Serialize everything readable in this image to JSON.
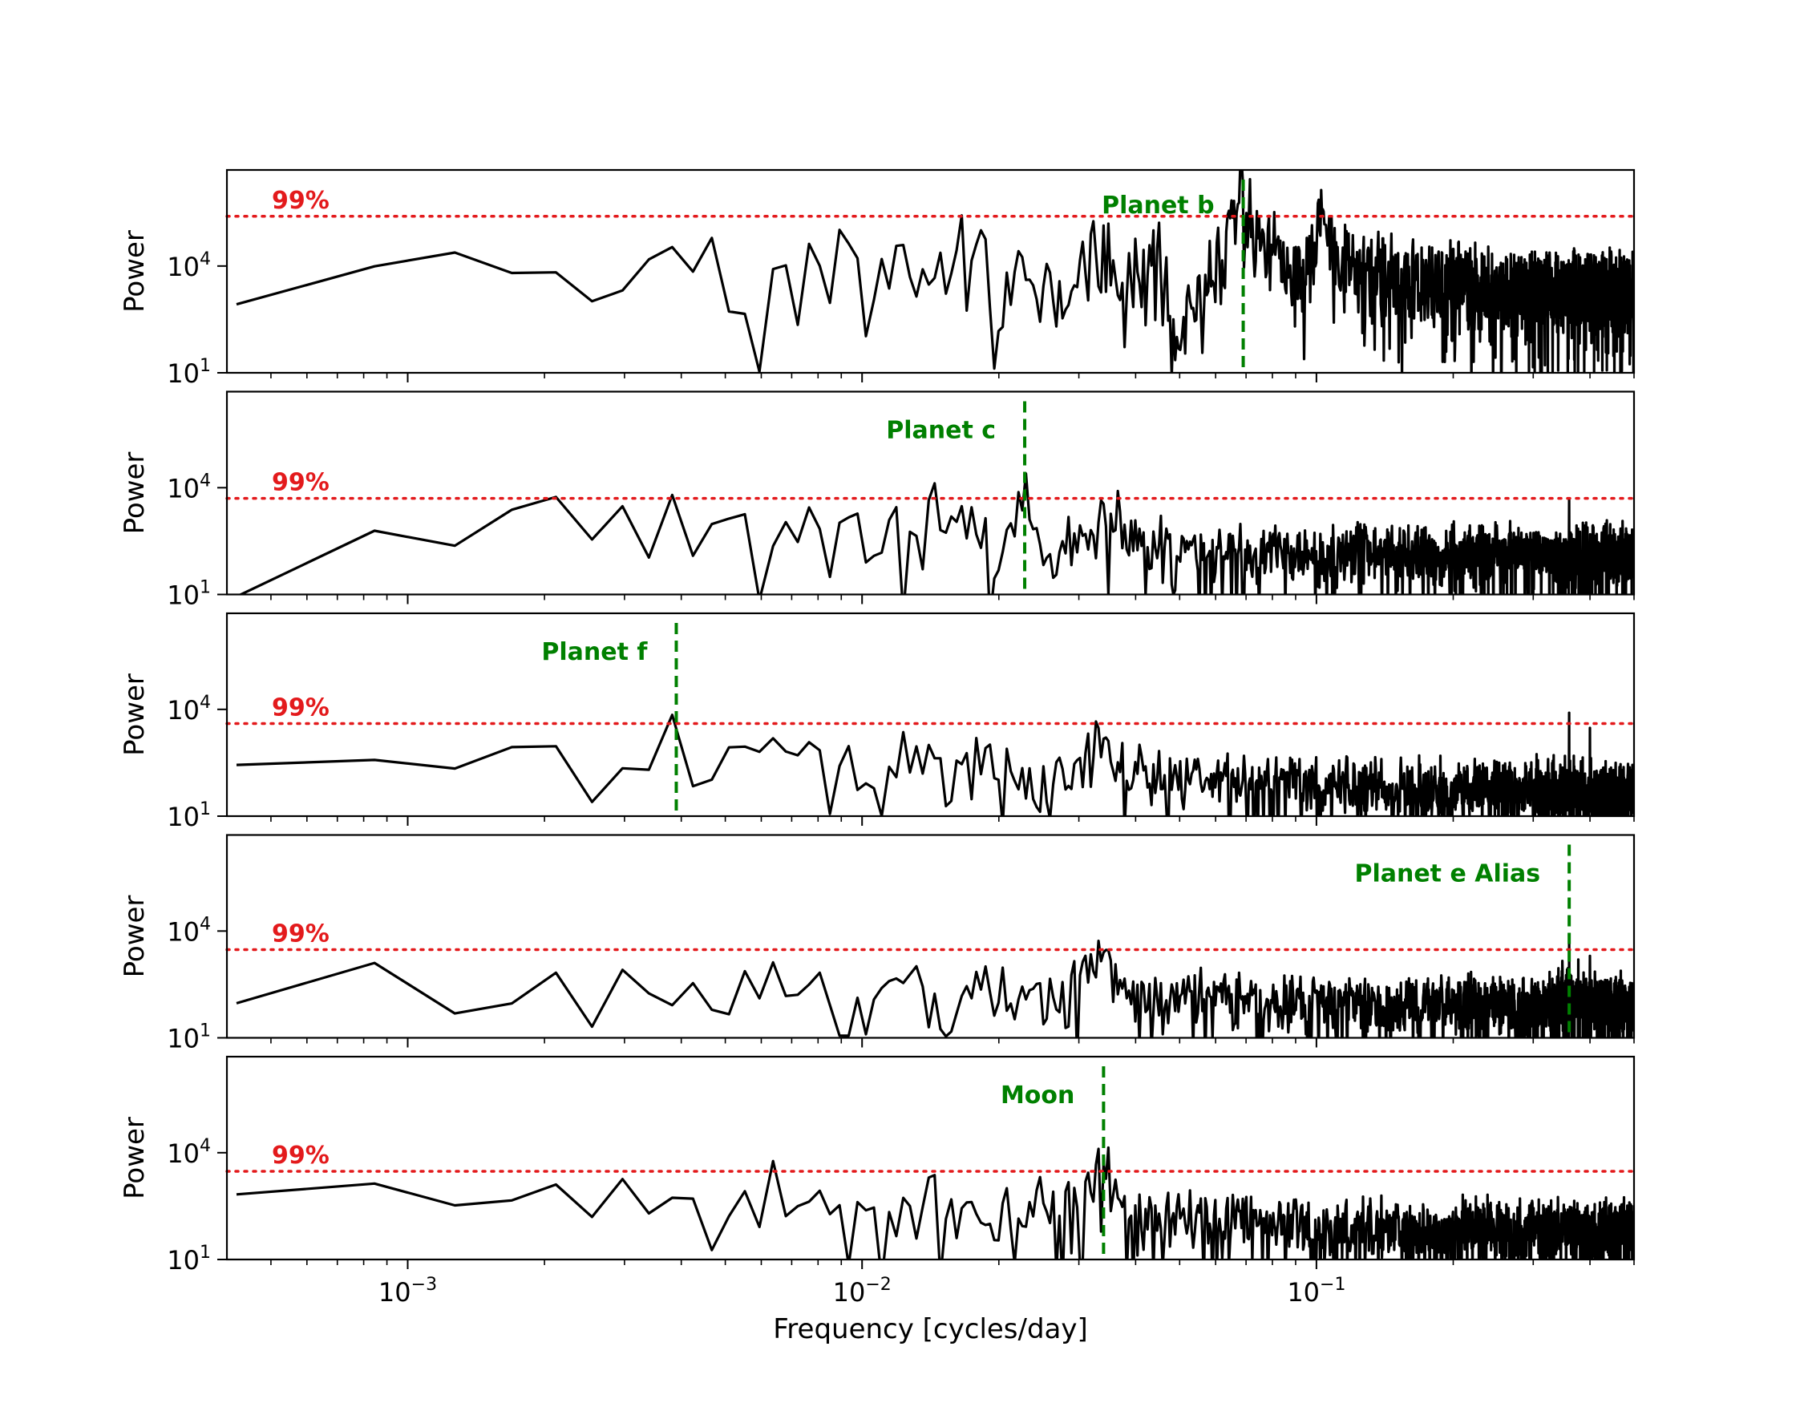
{
  "chart_data": {
    "type": "line",
    "xlabel": "Frequency [cycles/day]",
    "xscale": "log",
    "xlim": [
      0.0004,
      0.5
    ],
    "x_ticks": [
      {
        "value": 0.001,
        "base": "10",
        "exp": "−3"
      },
      {
        "value": 0.01,
        "base": "10",
        "exp": "−2"
      },
      {
        "value": 0.1,
        "base": "10",
        "exp": "−1"
      }
    ],
    "yscale": "log",
    "y_ticks": [
      {
        "value": 10,
        "base": "10",
        "exp": "1"
      },
      {
        "value": 10000,
        "base": "10",
        "exp": "4"
      }
    ],
    "colors": {
      "line": "#000000",
      "threshold": "#e31a1c",
      "marker": "#008000"
    },
    "grid": false,
    "panels": [
      {
        "ylabel": "Power",
        "ylim": [
          10,
          5000000
        ],
        "threshold": {
          "label": "99%",
          "value": 250000
        },
        "marker": {
          "label": "Planet b",
          "x": 0.069
        },
        "series": {
          "anchors": [
            [
              0.00042,
              2000
            ],
            [
              0.00085,
              60000
            ],
            [
              0.00125,
              4000
            ],
            [
              0.0017,
              3000
            ],
            [
              0.0021,
              20000
            ],
            [
              0.0025,
              3500
            ],
            [
              0.003,
              3800
            ],
            [
              0.0034,
              8000
            ],
            [
              0.0038,
              40000
            ],
            [
              0.0042,
              10000
            ],
            [
              0.0046,
              35000
            ],
            [
              0.005,
              8000
            ],
            [
              0.0055,
              2500
            ],
            [
              0.0059,
              70
            ],
            [
              0.0065,
              3000
            ],
            [
              0.0072,
              3000
            ],
            [
              0.008,
              40000
            ],
            [
              0.0085,
              2000
            ],
            [
              0.0094,
              60000
            ],
            [
              0.0105,
              5000
            ],
            [
              0.012,
              40000
            ],
            [
              0.013,
              2000
            ],
            [
              0.015,
              20000
            ],
            [
              0.017,
              40000
            ],
            [
              0.0185,
              50000
            ],
            [
              0.02,
              100
            ],
            [
              0.022,
              30000
            ],
            [
              0.024,
              500
            ],
            [
              0.028,
              3000
            ],
            [
              0.032,
              60000
            ],
            [
              0.038,
              2000
            ],
            [
              0.045,
              20000
            ],
            [
              0.05,
              100
            ],
            [
              0.06,
              10000
            ],
            [
              0.065,
              80000
            ],
            [
              0.069,
              3000000
            ],
            [
              0.073,
              60000
            ],
            [
              0.08,
              20000
            ],
            [
              0.095,
              5000
            ],
            [
              0.103,
              300000
            ],
            [
              0.11,
              15000
            ],
            [
              0.14,
              5000
            ],
            [
              0.2,
              3000
            ],
            [
              0.3,
              2000
            ],
            [
              0.4,
              2000
            ],
            [
              0.5,
              2000
            ]
          ],
          "noise": [
            0.7,
            1.3
          ],
          "dip_prob": 0.12,
          "spikes": [
            [
              0.069,
              2500000
            ],
            [
              0.0675,
              600000
            ],
            [
              0.103,
              300000
            ],
            [
              0.14,
              60000
            ],
            [
              0.2,
              30000
            ]
          ],
          "seed": 11
        }
      },
      {
        "ylabel": "Power",
        "ylim": [
          10,
          5000000
        ],
        "threshold": {
          "label": "99%",
          "value": 5000
        },
        "marker": {
          "label": "Planet c",
          "x": 0.0228
        },
        "series": {
          "anchors": [
            [
              0.00042,
              12
            ],
            [
              0.00085,
              600
            ],
            [
              0.00125,
              60
            ],
            [
              0.0017,
              1500
            ],
            [
              0.0021,
              2500
            ],
            [
              0.0025,
              300
            ],
            [
              0.003,
              2000
            ],
            [
              0.0034,
              200
            ],
            [
              0.0038,
              5000
            ],
            [
              0.0042,
              300
            ],
            [
              0.0046,
              1500
            ],
            [
              0.005,
              150
            ],
            [
              0.0055,
              3000
            ],
            [
              0.006,
              10
            ],
            [
              0.0065,
              1000
            ],
            [
              0.0072,
              500
            ],
            [
              0.008,
              3000
            ],
            [
              0.0085,
              200
            ],
            [
              0.0094,
              3000
            ],
            [
              0.0105,
              300
            ],
            [
              0.012,
              1500
            ],
            [
              0.013,
              200
            ],
            [
              0.014,
              5000
            ],
            [
              0.015,
              400
            ],
            [
              0.017,
              2000
            ],
            [
              0.018,
              1500
            ],
            [
              0.0195,
              30
            ],
            [
              0.0215,
              300
            ],
            [
              0.0228,
              25000
            ],
            [
              0.024,
              500
            ],
            [
              0.027,
              100
            ],
            [
              0.03,
              400
            ],
            [
              0.034,
              3500
            ],
            [
              0.04,
              300
            ],
            [
              0.06,
              200
            ],
            [
              0.1,
              150
            ],
            [
              0.2,
              150
            ],
            [
              0.35,
              150
            ],
            [
              0.5,
              150
            ]
          ],
          "noise": [
            0.35,
            1.0
          ],
          "dip_prob": 0.12,
          "spikes": [
            [
              0.0228,
              25000
            ],
            [
              0.034,
              3500
            ],
            [
              0.36,
              4500
            ],
            [
              0.014,
              4500
            ]
          ],
          "seed": 23
        }
      },
      {
        "ylabel": "Power",
        "ylim": [
          10,
          5000000
        ],
        "threshold": {
          "label": "99%",
          "value": 4000
        },
        "marker": {
          "label": "Planet f",
          "x": 0.0039
        },
        "series": {
          "anchors": [
            [
              0.00042,
              200
            ],
            [
              0.00085,
              1000
            ],
            [
              0.00125,
              300
            ],
            [
              0.0017,
              800
            ],
            [
              0.0021,
              600
            ],
            [
              0.0025,
              80
            ],
            [
              0.003,
              1200
            ],
            [
              0.0034,
              90
            ],
            [
              0.0039,
              7000
            ],
            [
              0.0043,
              40
            ],
            [
              0.0047,
              150
            ],
            [
              0.005,
              300
            ],
            [
              0.0055,
              700
            ],
            [
              0.006,
              200
            ],
            [
              0.0065,
              500
            ],
            [
              0.0072,
              300
            ],
            [
              0.008,
              600
            ],
            [
              0.009,
              300
            ],
            [
              0.01,
              100
            ],
            [
              0.011,
              500
            ],
            [
              0.013,
              300
            ],
            [
              0.014,
              1000
            ],
            [
              0.016,
              50
            ],
            [
              0.018,
              400
            ],
            [
              0.02,
              300
            ],
            [
              0.025,
              100
            ],
            [
              0.03,
              200
            ],
            [
              0.034,
              1500
            ],
            [
              0.04,
              150
            ],
            [
              0.06,
              100
            ],
            [
              0.1,
              80
            ],
            [
              0.2,
              60
            ],
            [
              0.35,
              60
            ],
            [
              0.5,
              60
            ]
          ],
          "noise": [
            0.35,
            1.0
          ],
          "dip_prob": 0.12,
          "spikes": [
            [
              0.0039,
              7000
            ],
            [
              0.034,
              1500
            ],
            [
              0.36,
              8000
            ],
            [
              0.4,
              3000
            ],
            [
              0.014,
              1000
            ]
          ],
          "seed": 37
        }
      },
      {
        "ylabel": "Power",
        "ylim": [
          10,
          5000000
        ],
        "threshold": {
          "label": "99%",
          "value": 3000
        },
        "marker": {
          "label": "Planet e Alias",
          "x": 0.36
        },
        "series": {
          "anchors": [
            [
              0.00042,
              250
            ],
            [
              0.00085,
              1000
            ],
            [
              0.00125,
              120
            ],
            [
              0.0017,
              180
            ],
            [
              0.0021,
              500
            ],
            [
              0.0025,
              110
            ],
            [
              0.003,
              1500
            ],
            [
              0.0034,
              300
            ],
            [
              0.0038,
              400
            ],
            [
              0.0042,
              300
            ],
            [
              0.0046,
              60
            ],
            [
              0.005,
              300
            ],
            [
              0.0055,
              500
            ],
            [
              0.006,
              300
            ],
            [
              0.0065,
              600
            ],
            [
              0.0072,
              150
            ],
            [
              0.008,
              500
            ],
            [
              0.009,
              150
            ],
            [
              0.01,
              60
            ],
            [
              0.011,
              300
            ],
            [
              0.013,
              200
            ],
            [
              0.014,
              1000
            ],
            [
              0.015,
              20
            ],
            [
              0.017,
              300
            ],
            [
              0.02,
              200
            ],
            [
              0.025,
              150
            ],
            [
              0.03,
              200
            ],
            [
              0.034,
              2500
            ],
            [
              0.04,
              150
            ],
            [
              0.06,
              120
            ],
            [
              0.1,
              100
            ],
            [
              0.2,
              80
            ],
            [
              0.3,
              80
            ],
            [
              0.36,
              200
            ],
            [
              0.5,
              80
            ]
          ],
          "noise": [
            0.35,
            1.0
          ],
          "dip_prob": 0.12,
          "spikes": [
            [
              0.36,
              6000
            ],
            [
              0.4,
              2000
            ],
            [
              0.034,
              2500
            ]
          ],
          "seed": 53
        }
      },
      {
        "ylabel": "Power",
        "ylim": [
          10,
          5000000
        ],
        "threshold": {
          "label": "99%",
          "value": 3000
        },
        "marker": {
          "label": "Moon",
          "x": 0.034
        },
        "series": {
          "anchors": [
            [
              0.00042,
              400
            ],
            [
              0.00085,
              2500
            ],
            [
              0.00125,
              150
            ],
            [
              0.0017,
              200
            ],
            [
              0.0021,
              800
            ],
            [
              0.0025,
              150
            ],
            [
              0.003,
              2500
            ],
            [
              0.0034,
              150
            ],
            [
              0.0038,
              800
            ],
            [
              0.0042,
              500
            ],
            [
              0.0047,
              15
            ],
            [
              0.005,
              300
            ],
            [
              0.0055,
              600
            ],
            [
              0.006,
              300
            ],
            [
              0.0065,
              1000
            ],
            [
              0.007,
              200
            ],
            [
              0.0075,
              1000
            ],
            [
              0.008,
              800
            ],
            [
              0.009,
              500
            ],
            [
              0.01,
              100
            ],
            [
              0.0105,
              30
            ],
            [
              0.011,
              200
            ],
            [
              0.013,
              300
            ],
            [
              0.014,
              2000
            ],
            [
              0.016,
              100
            ],
            [
              0.018,
              300
            ],
            [
              0.02,
              200
            ],
            [
              0.025,
              300
            ],
            [
              0.03,
              400
            ],
            [
              0.034,
              5000
            ],
            [
              0.038,
              200
            ],
            [
              0.05,
              150
            ],
            [
              0.08,
              100
            ],
            [
              0.12,
              80
            ],
            [
              0.2,
              70
            ],
            [
              0.35,
              70
            ],
            [
              0.5,
              70
            ]
          ],
          "noise": [
            0.35,
            1.0
          ],
          "dip_prob": 0.12,
          "spikes": [
            [
              0.034,
              5000
            ],
            [
              0.014,
              2000
            ]
          ],
          "seed": 71
        }
      }
    ]
  }
}
